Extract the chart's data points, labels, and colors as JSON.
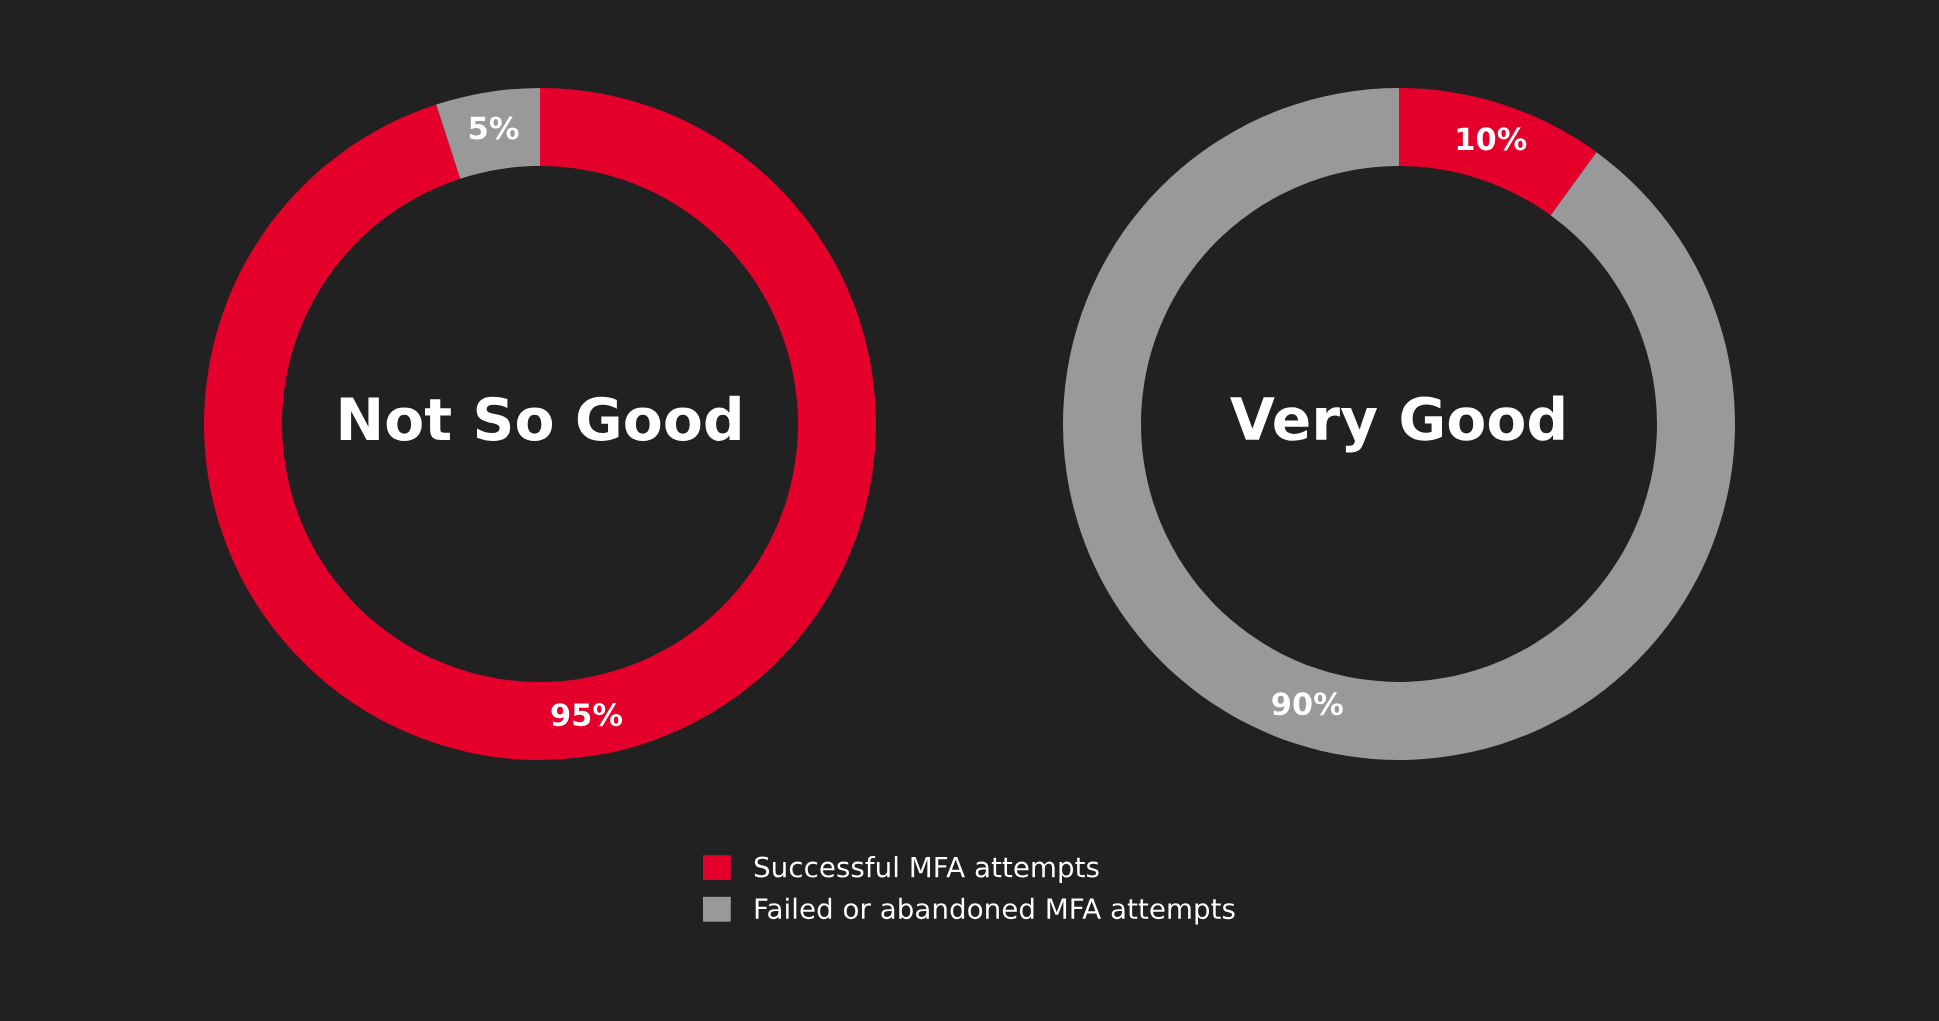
{
  "chart_data": {
    "type": "donut",
    "categories": [
      "Successful MFA attempts",
      "Failed or abandoned MFA attempts"
    ],
    "colors": [
      "#e4002b",
      "#999999"
    ],
    "legend": "bottom",
    "series": [
      {
        "name": "Not So Good",
        "values": [
          95,
          5
        ],
        "value_labels": [
          "95%",
          "5%"
        ]
      },
      {
        "name": "Very Good",
        "values": [
          10,
          90
        ],
        "value_labels": [
          "10%",
          "90%"
        ]
      }
    ]
  }
}
